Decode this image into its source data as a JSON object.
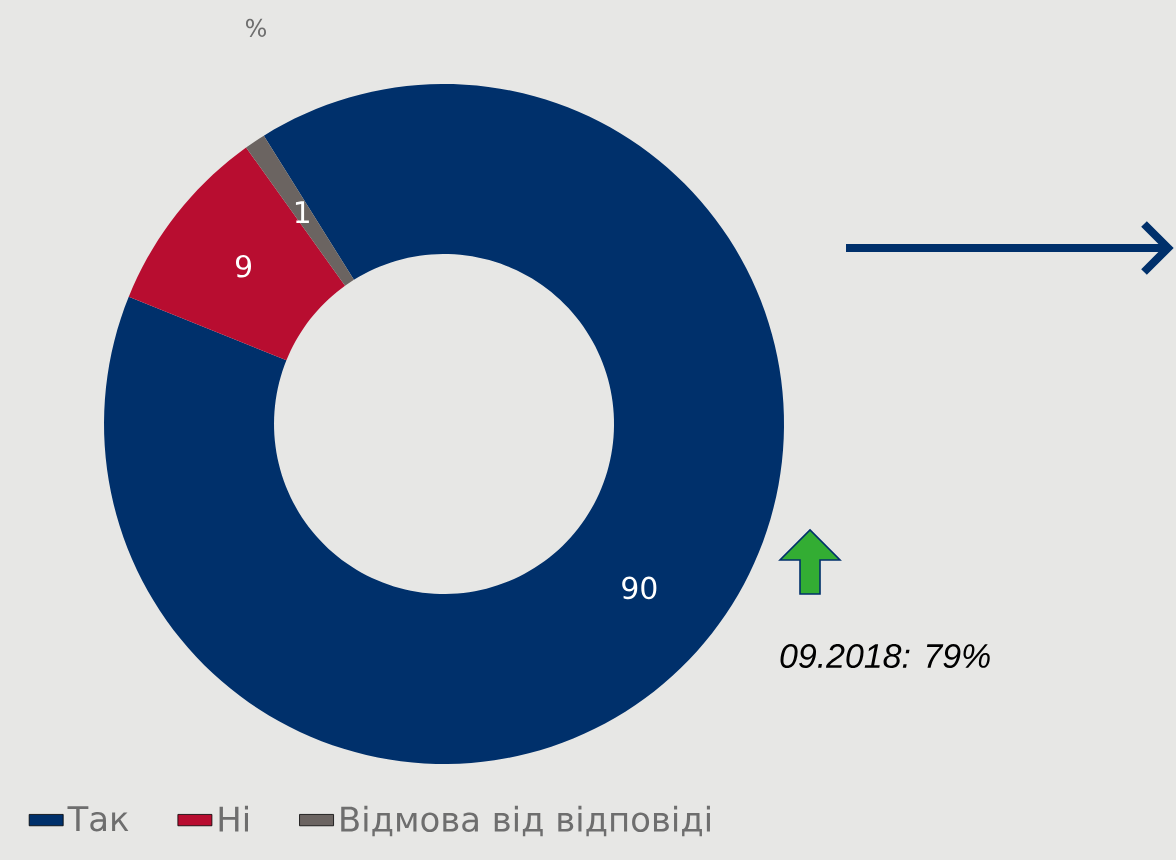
{
  "chart_data": {
    "type": "donut",
    "title": "%",
    "categories": [
      "Так",
      "Ні",
      "Відмова від відповіді"
    ],
    "values": [
      90,
      9,
      1
    ],
    "colors": [
      "#00306b",
      "#b80d30",
      "#6b6461"
    ],
    "data_labels": true,
    "legend": "bottom",
    "annotations": [
      "09.2018: 79%"
    ]
  }
}
